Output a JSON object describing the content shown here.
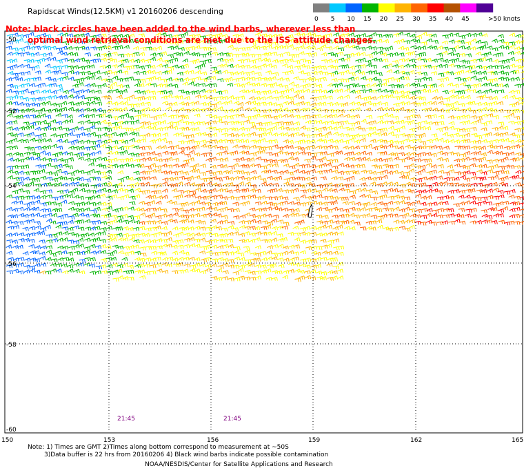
{
  "header": {
    "title": "Rapidscat Winds(12.5KM) v1 20160206 descending",
    "note_line1": "Note: black circles have been added to the wind barbs, wherever less than",
    "note_line2": "optimal wind retrieval conditions are met due to the ISS attitude changes."
  },
  "legend": {
    "unit": ">50 knots",
    "bins": [
      {
        "label": "0",
        "color": "#808080"
      },
      {
        "label": "5",
        "color": "#00c8ff"
      },
      {
        "label": "10",
        "color": "#0064ff"
      },
      {
        "label": "15",
        "color": "#00b400"
      },
      {
        "label": "20",
        "color": "#ffff00"
      },
      {
        "label": "25",
        "color": "#ffb400"
      },
      {
        "label": "30",
        "color": "#ff6400"
      },
      {
        "label": "35",
        "color": "#ff0000"
      },
      {
        "label": "40",
        "color": "#b45000"
      },
      {
        "label": "45",
        "color": "#ff00ff"
      },
      {
        "label": "",
        "color": "#500096"
      }
    ],
    "boundaries": [
      "0",
      "5",
      "10",
      "15",
      "20",
      "25",
      "30",
      "35",
      "40",
      "45"
    ]
  },
  "axes": {
    "lon_ticks": [
      "150",
      "153",
      "156",
      "159",
      "162",
      "165"
    ],
    "lat_ticks": [
      "-50",
      "-52",
      "-54",
      "-56",
      "-58",
      "-60"
    ],
    "lon_range": [
      150,
      165
    ],
    "lat_range": [
      -60,
      -50
    ],
    "grid": "dotted"
  },
  "times": [
    "21:45",
    "21:45"
  ],
  "footer": {
    "note1": "Note: 1) Times are GMT 2)Times along bottom correspond to measurement at ~50S",
    "note2": "3)Data buffer is 22 hrs from 20160206 4) Black wind barbs indicate possible contamination",
    "credit": "NOAA/NESDIS/Center for Satellite Applications and Research"
  }
}
